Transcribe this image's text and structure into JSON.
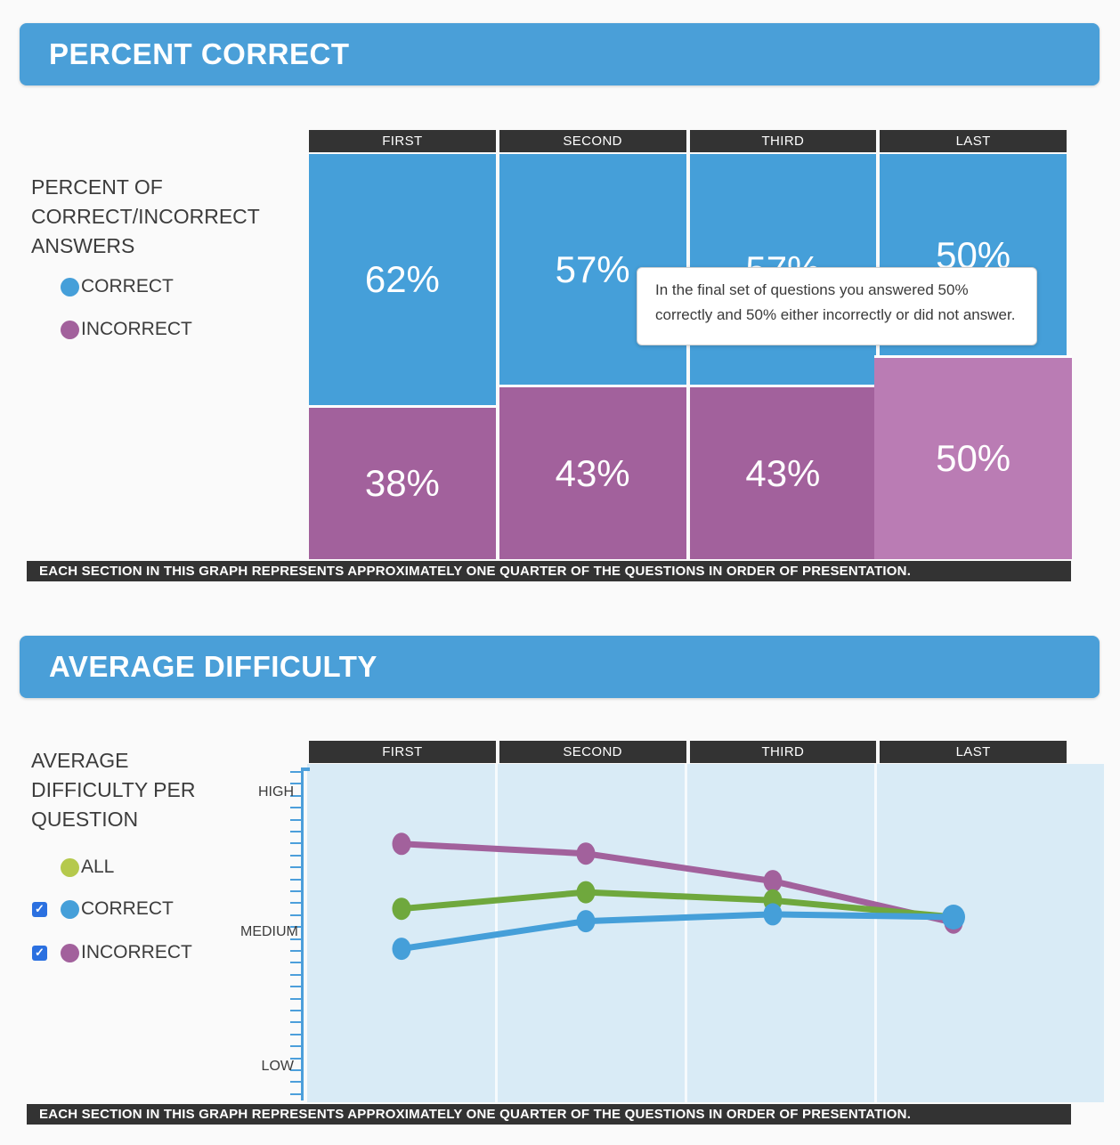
{
  "colors": {
    "header_blue": "#4a9fd8",
    "correct_blue": "#459fd9",
    "incorrect_purple": "#a2619c",
    "incorrect_purple_highlight": "#ba7cb4",
    "all_line_green": "#6fa83d",
    "all_legend_dot": "#b5c94c",
    "dark_bar": "#333333",
    "plot_background": "#d9ebf6",
    "axis_blue": "#4c9fdb",
    "checkbox_blue": "#2b70e0",
    "page_background": "#fafafa"
  },
  "section1": {
    "title": "PERCENT CORRECT",
    "sidebar": {
      "heading": "PERCENT OF CORRECT/INCORRECT ANSWERS",
      "legend": [
        {
          "label": "CORRECT",
          "color": "#459fd9"
        },
        {
          "label": "INCORRECT",
          "color": "#a2619c"
        }
      ]
    },
    "columns": [
      "FIRST",
      "SECOND",
      "THIRD",
      "LAST"
    ],
    "tooltip": "In the final set of questions you answered 50% correctly and 50% either incorrectly or did not answer.",
    "caption": "EACH SECTION IN THIS GRAPH REPRESENTS APPROXIMATELY ONE QUARTER OF THE QUESTIONS IN ORDER OF PRESENTATION."
  },
  "section2": {
    "title": "AVERAGE DIFFICULTY",
    "sidebar": {
      "heading": "AVERAGE DIFFICULTY PER QUESTION",
      "legend": [
        {
          "label": "ALL",
          "dot_color": "#b5c94c",
          "has_checkbox": false,
          "checked": null
        },
        {
          "label": "CORRECT",
          "dot_color": "#459fd9",
          "has_checkbox": true,
          "checked": true
        },
        {
          "label": "INCORRECT",
          "dot_color": "#a2619c",
          "has_checkbox": true,
          "checked": true
        }
      ]
    },
    "columns": [
      "FIRST",
      "SECOND",
      "THIRD",
      "LAST"
    ],
    "y_labels": [
      "HIGH",
      "MEDIUM",
      "LOW"
    ],
    "caption": "EACH SECTION IN THIS GRAPH REPRESENTS APPROXIMATELY ONE QUARTER OF THE QUESTIONS IN ORDER OF PRESENTATION."
  },
  "chart_data": [
    {
      "type": "bar",
      "subtype": "stacked-100-percent",
      "title": "PERCENT CORRECT",
      "categories": [
        "FIRST",
        "SECOND",
        "THIRD",
        "LAST"
      ],
      "series": [
        {
          "name": "CORRECT",
          "color": "#459fd9",
          "values": [
            62,
            57,
            57,
            50
          ]
        },
        {
          "name": "INCORRECT",
          "color": "#a2619c",
          "values": [
            38,
            43,
            43,
            50
          ]
        }
      ],
      "value_labels": {
        "correct": [
          "62%",
          "57%",
          "57%",
          "50%"
        ],
        "incorrect": [
          "38%",
          "43%",
          "43%",
          "50%"
        ]
      },
      "highlighted_category": "LAST",
      "highlight_color": "#ba7cb4",
      "tooltip_text": "In the final set of questions you answered 50% correctly and 50% either incorrectly or did not answer.",
      "ylim": [
        0,
        100
      ],
      "legend_position": "left"
    },
    {
      "type": "line",
      "title": "AVERAGE DIFFICULTY",
      "x": [
        "FIRST",
        "SECOND",
        "THIRD",
        "LAST"
      ],
      "y_axis": {
        "labels": [
          "HIGH",
          "MEDIUM",
          "LOW"
        ],
        "scale_note": "LOW=1, MEDIUM=2, HIGH=3 (estimated from plot)"
      },
      "series": [
        {
          "name": "ALL",
          "color": "#6fa83d",
          "values": [
            2.17,
            2.29,
            2.23,
            2.11
          ]
        },
        {
          "name": "CORRECT",
          "color": "#459fd9",
          "values": [
            1.88,
            2.08,
            2.13,
            2.11
          ]
        },
        {
          "name": "INCORRECT",
          "color": "#a2619c",
          "values": [
            2.64,
            2.57,
            2.37,
            2.07
          ]
        }
      ],
      "grid": "vertical quarter separators only",
      "legend_position": "left"
    }
  ]
}
